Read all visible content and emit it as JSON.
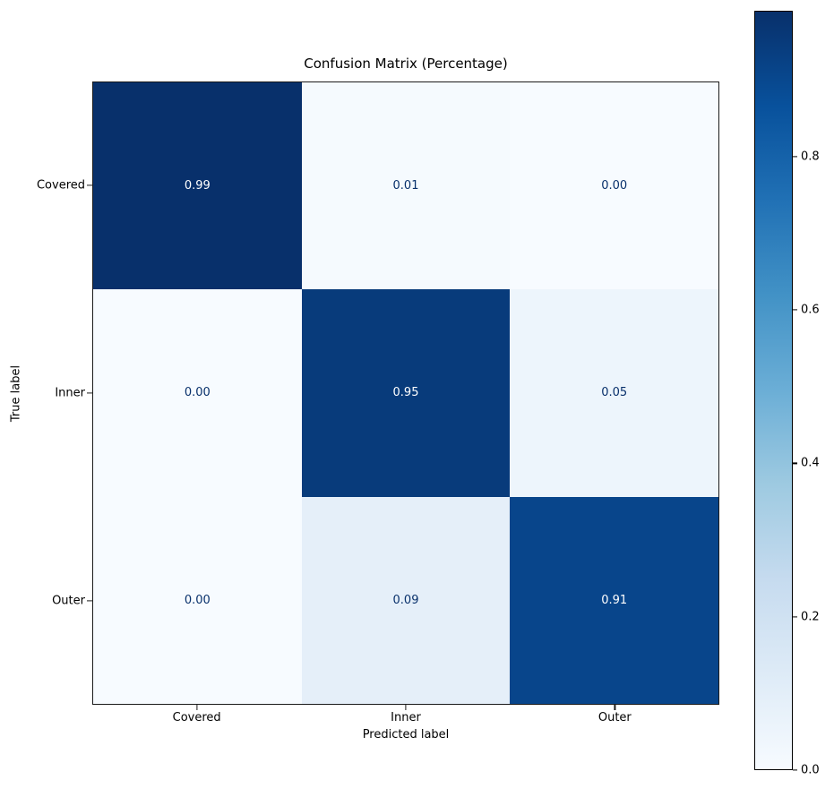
{
  "chart_data": {
    "type": "heatmap",
    "title": "Confusion Matrix (Percentage)",
    "xlabel": "Predicted label",
    "ylabel": "True label",
    "col_labels": [
      "Covered",
      "Inner",
      "Outer"
    ],
    "row_labels": [
      "Covered",
      "Inner",
      "Outer"
    ],
    "matrix": [
      [
        0.99,
        0.01,
        0.0
      ],
      [
        0.0,
        0.95,
        0.05
      ],
      [
        0.0,
        0.09,
        0.91
      ]
    ],
    "matrix_display": [
      [
        "0.99",
        "0.01",
        "0.00"
      ],
      [
        "0.00",
        "0.95",
        "0.05"
      ],
      [
        "0.00",
        "0.09",
        "0.91"
      ]
    ],
    "cell_colors": [
      [
        "#08306b",
        "#f5fafe",
        "#f7fbff"
      ],
      [
        "#f7fbff",
        "#083b7b",
        "#edf5fc"
      ],
      [
        "#f7fbff",
        "#e5eff9",
        "#08458b"
      ]
    ],
    "cell_text_colors": [
      [
        "#ffffff",
        "#08306b",
        "#08306b"
      ],
      [
        "#08306b",
        "#ffffff",
        "#08306b"
      ],
      [
        "#08306b",
        "#08306b",
        "#ffffff"
      ]
    ],
    "colormap": "Blues",
    "grid": false,
    "colorbar": {
      "position": "right",
      "vmin": 0.0,
      "vmax": 0.99,
      "ticks": [
        {
          "value": 0.0,
          "label": "0.0"
        },
        {
          "value": 0.2,
          "label": "0.2"
        },
        {
          "value": 0.4,
          "label": "0.4"
        },
        {
          "value": 0.6,
          "label": "0.6"
        },
        {
          "value": 0.8,
          "label": "0.8"
        }
      ],
      "gradient_stops": [
        {
          "frac": 0.0,
          "color": "#f7fbff"
        },
        {
          "frac": 0.125,
          "color": "#deebf7"
        },
        {
          "frac": 0.25,
          "color": "#c6dbef"
        },
        {
          "frac": 0.375,
          "color": "#9ecae1"
        },
        {
          "frac": 0.5,
          "color": "#6baed6"
        },
        {
          "frac": 0.625,
          "color": "#4292c6"
        },
        {
          "frac": 0.75,
          "color": "#2171b5"
        },
        {
          "frac": 0.875,
          "color": "#08519c"
        },
        {
          "frac": 1.0,
          "color": "#08306b"
        }
      ]
    }
  }
}
